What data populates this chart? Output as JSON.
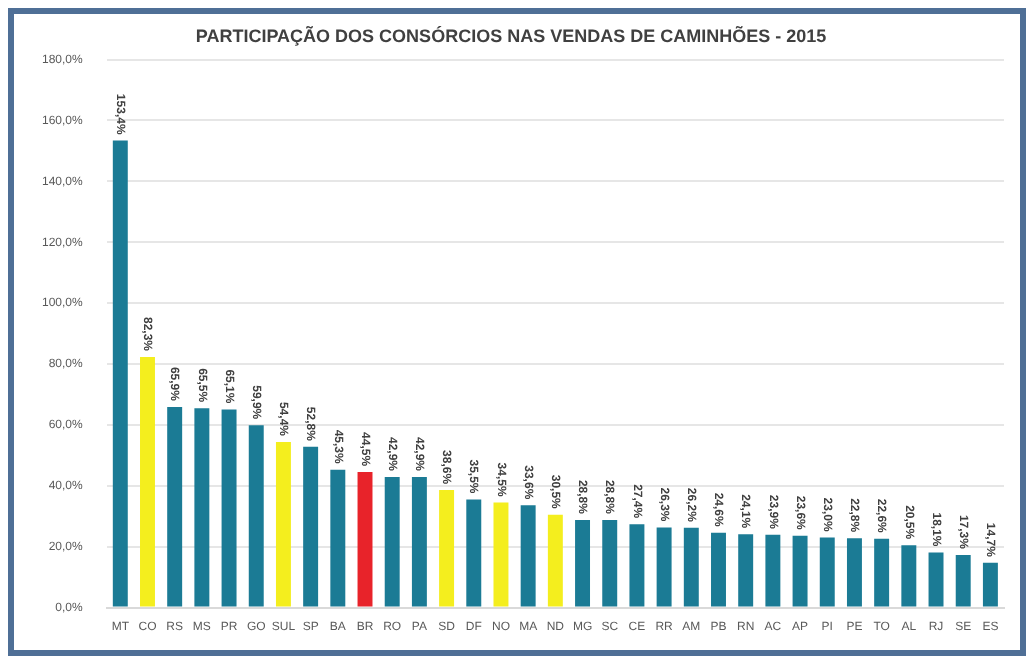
{
  "chart_data": {
    "type": "bar",
    "title": "PARTICIPAÇÃO DOS CONSÓRCIOS NAS VENDAS DE CAMINHÕES - 2015",
    "categories": [
      "MT",
      "CO",
      "RS",
      "MS",
      "PR",
      "GO",
      "SUL",
      "SP",
      "BA",
      "BR",
      "RO",
      "PA",
      "SD",
      "DF",
      "NO",
      "MA",
      "ND",
      "MG",
      "SC",
      "CE",
      "RR",
      "AM",
      "PB",
      "RN",
      "AC",
      "AP",
      "PI",
      "PE",
      "TO",
      "AL",
      "RJ",
      "SE",
      "ES"
    ],
    "values": [
      153.4,
      82.3,
      65.9,
      65.5,
      65.1,
      59.9,
      54.4,
      52.8,
      45.3,
      44.5,
      42.9,
      42.9,
      38.6,
      35.5,
      34.5,
      33.6,
      30.5,
      28.8,
      28.8,
      27.4,
      26.3,
      26.2,
      24.6,
      24.1,
      23.9,
      23.6,
      23.0,
      22.8,
      22.6,
      20.5,
      18.1,
      17.3,
      14.7
    ],
    "value_labels": [
      "153,4%",
      "82,3%",
      "65,9%",
      "65,5%",
      "65,1%",
      "59,9%",
      "54,4%",
      "52,8%",
      "45,3%",
      "44,5%",
      "42,9%",
      "42,9%",
      "38,6%",
      "35,5%",
      "34,5%",
      "33,6%",
      "30,5%",
      "28,8%",
      "28,8%",
      "27,4%",
      "26,3%",
      "26,2%",
      "24,6%",
      "24,1%",
      "23,9%",
      "23,6%",
      "23,0%",
      "22,8%",
      "22,6%",
      "20,5%",
      "18,1%",
      "17,3%",
      "14,7%"
    ],
    "colors": [
      "#1b7b95",
      "#f4ee1e",
      "#1b7b95",
      "#1b7b95",
      "#1b7b95",
      "#1b7b95",
      "#f4ee1e",
      "#1b7b95",
      "#1b7b95",
      "#e8232a",
      "#1b7b95",
      "#1b7b95",
      "#f4ee1e",
      "#1b7b95",
      "#f4ee1e",
      "#1b7b95",
      "#f4ee1e",
      "#1b7b95",
      "#1b7b95",
      "#1b7b95",
      "#1b7b95",
      "#1b7b95",
      "#1b7b95",
      "#1b7b95",
      "#1b7b95",
      "#1b7b95",
      "#1b7b95",
      "#1b7b95",
      "#1b7b95",
      "#1b7b95",
      "#1b7b95",
      "#1b7b95",
      "#1b7b95"
    ],
    "ylim": [
      0,
      180
    ],
    "yticks": [
      {
        "value": 0,
        "label": "0,0%"
      },
      {
        "value": 20,
        "label": "20,0%"
      },
      {
        "value": 40,
        "label": "40,0%"
      },
      {
        "value": 60,
        "label": "60,0%"
      },
      {
        "value": 80,
        "label": "80,0%"
      },
      {
        "value": 100,
        "label": "100,0%"
      },
      {
        "value": 120,
        "label": "120,0%"
      },
      {
        "value": 140,
        "label": "140,0%"
      },
      {
        "value": 160,
        "label": "160,0%"
      },
      {
        "value": 180,
        "label": "180,0%"
      }
    ],
    "grid": "y",
    "legend": false
  }
}
